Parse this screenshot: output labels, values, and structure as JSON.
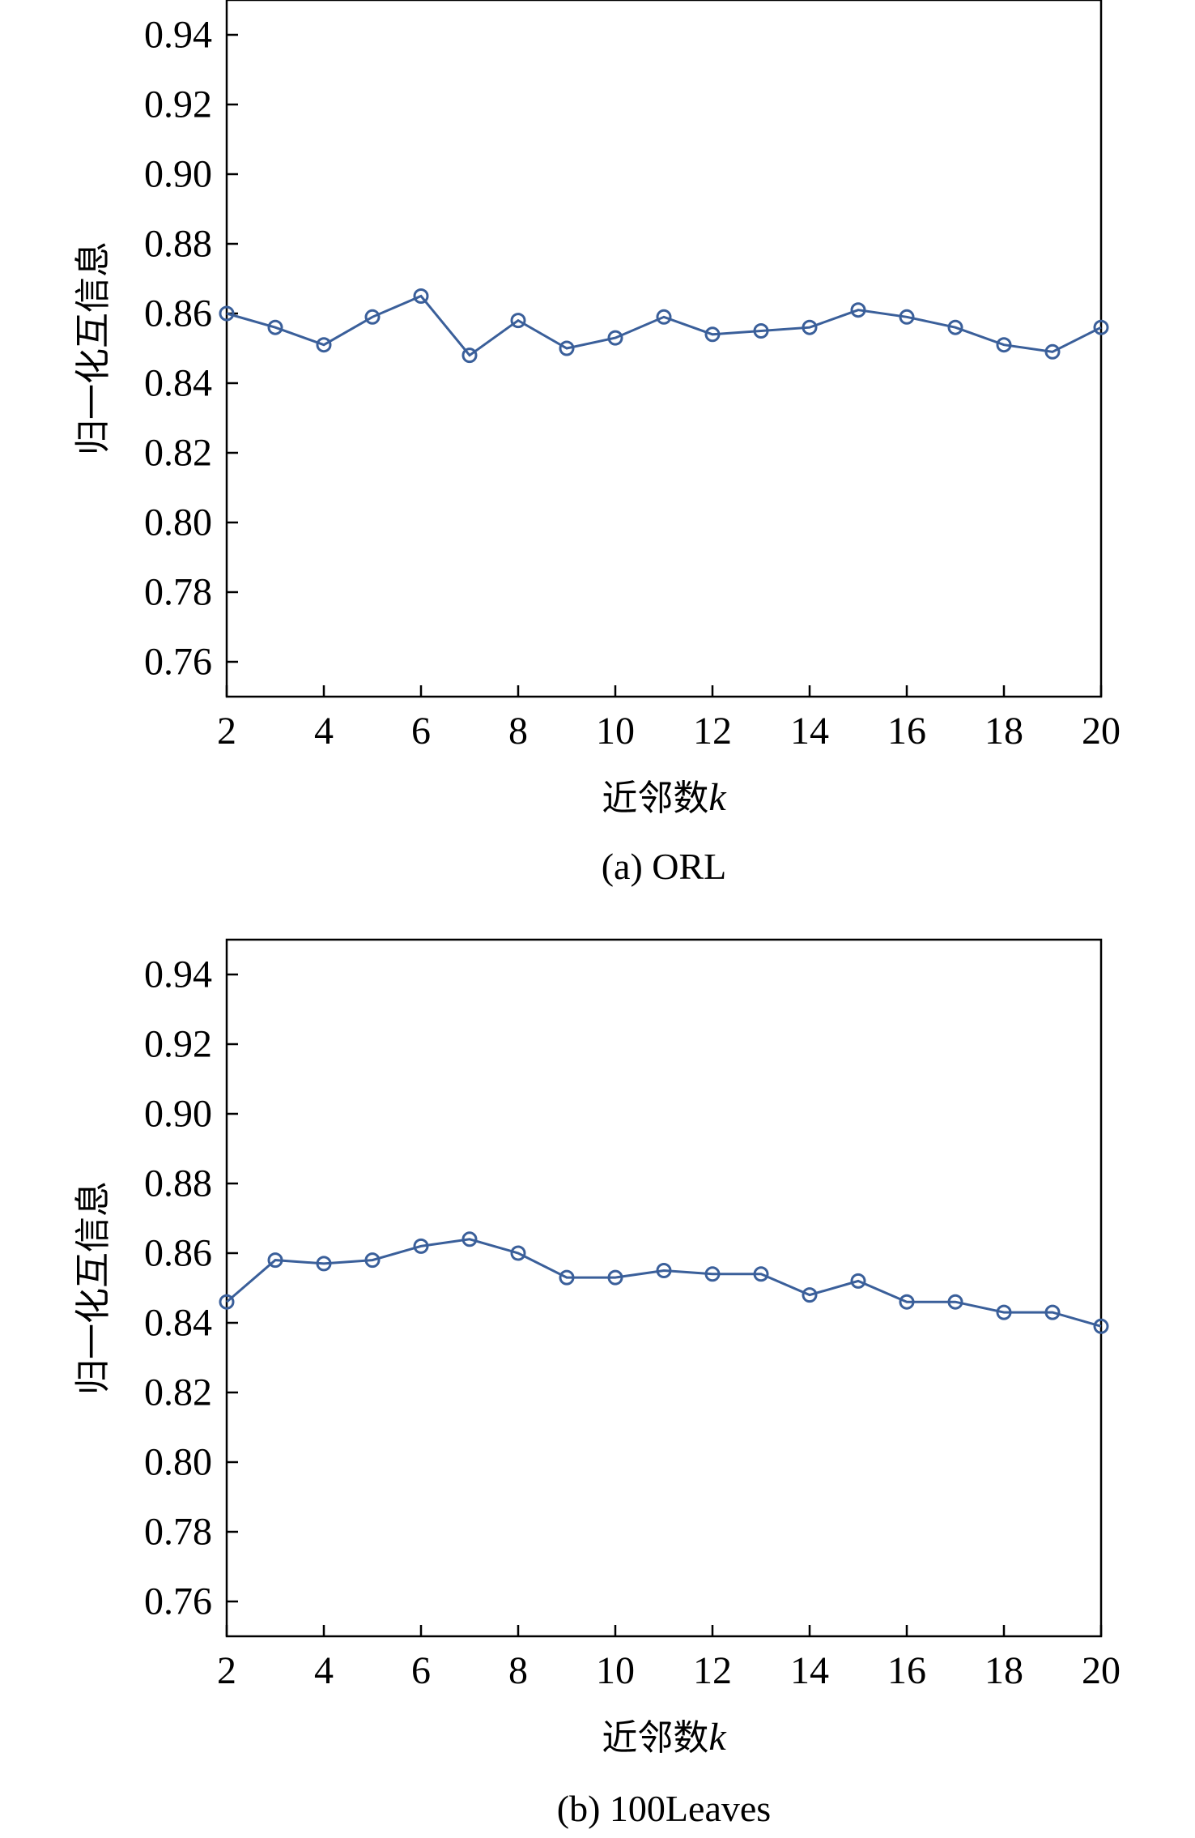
{
  "chart_data": [
    {
      "type": "line",
      "caption": "(a) ORL",
      "xlabel": {
        "main": "近邻数",
        "var": "k"
      },
      "ylabel": "归一化互信息",
      "xlim": [
        2,
        20
      ],
      "ylim": [
        0.75,
        0.95
      ],
      "xticks": [
        2,
        4,
        6,
        8,
        10,
        12,
        14,
        16,
        18,
        20
      ],
      "yticks": [
        0.76,
        0.78,
        0.8,
        0.82,
        0.84,
        0.86,
        0.88,
        0.9,
        0.92,
        0.94
      ],
      "ytick_labels": [
        "0.76",
        "0.78",
        "0.80",
        "0.82",
        "0.84",
        "0.86",
        "0.88",
        "0.90",
        "0.92",
        "0.94"
      ],
      "grid": false,
      "color": "#3a5f9a",
      "series": [
        {
          "x": [
            2,
            3,
            4,
            5,
            6,
            7,
            8,
            9,
            10,
            11,
            12,
            13,
            14,
            15,
            16,
            17,
            18,
            19,
            20
          ],
          "values": [
            0.86,
            0.856,
            0.851,
            0.859,
            0.865,
            0.848,
            0.858,
            0.85,
            0.853,
            0.859,
            0.854,
            0.855,
            0.856,
            0.861,
            0.859,
            0.856,
            0.851,
            0.849,
            0.856
          ]
        }
      ]
    },
    {
      "type": "line",
      "caption": "(b) 100Leaves",
      "xlabel": {
        "main": "近邻数",
        "var": "k"
      },
      "ylabel": "归一化互信息",
      "xlim": [
        2,
        20
      ],
      "ylim": [
        0.75,
        0.95
      ],
      "xticks": [
        2,
        4,
        6,
        8,
        10,
        12,
        14,
        16,
        18,
        20
      ],
      "yticks": [
        0.76,
        0.78,
        0.8,
        0.82,
        0.84,
        0.86,
        0.88,
        0.9,
        0.92,
        0.94
      ],
      "ytick_labels": [
        "0.76",
        "0.78",
        "0.80",
        "0.82",
        "0.84",
        "0.86",
        "0.88",
        "0.90",
        "0.92",
        "0.94"
      ],
      "grid": false,
      "color": "#3a5f9a",
      "series": [
        {
          "x": [
            2,
            3,
            4,
            5,
            6,
            7,
            8,
            9,
            10,
            11,
            12,
            13,
            14,
            15,
            16,
            17,
            18,
            19,
            20
          ],
          "values": [
            0.846,
            0.858,
            0.857,
            0.858,
            0.862,
            0.864,
            0.86,
            0.853,
            0.853,
            0.855,
            0.854,
            0.854,
            0.848,
            0.852,
            0.846,
            0.846,
            0.843,
            0.843,
            0.839
          ]
        }
      ]
    }
  ]
}
